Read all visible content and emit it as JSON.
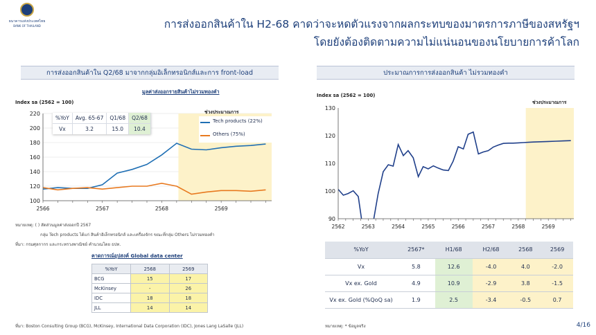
{
  "header": {
    "logo_line1": "ธนาคารแห่งประเทศไทย",
    "logo_line2": "BANK OF THAILAND",
    "title_line1": "การส่งออกสินค้าใน H2-68 คาดว่าจะหดตัวแรงจากผลกระทบของมาตรการภาษีของสหรัฐฯ",
    "title_line2": "โดยยังต้องติดตามความไม่แน่นอนของนโยบายการค้าโลก"
  },
  "left": {
    "panel_title": "การส่งออกสินค้าใน Q2/68 มาจากกลุ่มอิเล็กทรอนิกส์และการ front-load",
    "chart_subtitle": "มูลค่าส่งออกรายสินค้าไม่รวมทองคำ",
    "chart_unit": "Index sa (2562 = 100)",
    "forecast_label": "ช่วงประมาณการ",
    "vx_table": {
      "headers": [
        "%YoY",
        "Avg. 65-67",
        "Q1/68",
        "Q2/68"
      ],
      "row": [
        "Vx",
        "3.2",
        "15.0",
        "10.4"
      ]
    },
    "note_label": "หมายเหตุ: ( ) สัดส่วนมูลค่าส่งออกปี 2567",
    "note_line2": "กลุ่ม Tech products ได้แก่ สินค้าอิเล็กทรอนิกส์ และเครื่องจักร ขณะที่กลุ่ม Others ไม่รวมทองคำ",
    "source_line": "ที่มา: กรมศุลกากร และกระทรวงพาณิชย์ คำนวณโดย ธปท.",
    "gdc_title": "คาดการณ์อุปสงค์ Global data center",
    "gdc_table": {
      "headers": [
        "%YoY",
        "2568",
        "2569"
      ],
      "rows": [
        [
          "BCG",
          "15",
          "17"
        ],
        [
          "McKinsey",
          "-",
          "26"
        ],
        [
          "IDC",
          "18",
          "18"
        ],
        [
          "JLL",
          "14",
          "14"
        ]
      ]
    },
    "gdc_source": "ที่มา: Boston Consulting Group (BCG), McKinsey, International Data Corporation (IDC), Jones Lang LaSalle (JLL)"
  },
  "right": {
    "panel_title": "ประมาณการการส่งออกสินค้า ไม่รวมทองคำ",
    "chart_unit": "Index sa (2562 = 100)",
    "forecast_label": "ช่วงประมาณการ",
    "table": {
      "headers": [
        "%YoY",
        "2567*",
        "H1/68",
        "H2/68",
        "2568",
        "2569"
      ],
      "rows": [
        [
          "Vx",
          "5.8",
          "12.6",
          "-4.0",
          "4.0",
          "-2.0"
        ],
        [
          "Vx ex. Gold",
          "4.9",
          "10.9",
          "-2.9",
          "3.8",
          "-1.5"
        ],
        [
          "Vx ex. Gold (%QoQ sa)",
          "1.9",
          "2.5",
          "-3.4",
          "-0.5",
          "0.7"
        ]
      ]
    },
    "note": "หมายเหตุ: * ข้อมูลจริง"
  },
  "page_number": "4/16",
  "colors": {
    "navy": "#1d3f7a",
    "tech_line": "#1f6fb4",
    "others_line": "#e8791f",
    "right_line": "#1f3f8a",
    "forecast_shade": "#fdf2c9",
    "highlight_green": "#dff0d4"
  },
  "chart_data": [
    {
      "type": "line",
      "ylim": [
        100,
        220
      ],
      "yticks": [
        100,
        120,
        140,
        160,
        180,
        200,
        220
      ],
      "xlim": [
        2566,
        2569.85
      ],
      "xticks": [
        "2566",
        "2567",
        "2568",
        "2569"
      ],
      "forecast_start": 2568.28,
      "series": [
        {
          "name": "Tech products (22%)",
          "x": [
            2566,
            2566.25,
            2566.5,
            2566.75,
            2567,
            2567.25,
            2567.5,
            2567.75,
            2568,
            2568.25,
            2568.5,
            2568.75,
            2569,
            2569.25,
            2569.5,
            2569.75
          ],
          "values": [
            116,
            118,
            117,
            117,
            122,
            138,
            143,
            150,
            163,
            179,
            171,
            170,
            173,
            175,
            176,
            178
          ]
        },
        {
          "name": "Others (75%)",
          "x": [
            2566,
            2566.25,
            2566.5,
            2566.75,
            2567,
            2567.25,
            2567.5,
            2567.75,
            2568,
            2568.25,
            2568.5,
            2568.75,
            2569,
            2569.25,
            2569.5,
            2569.75
          ],
          "values": [
            118,
            115,
            117,
            118,
            116,
            118,
            120,
            120,
            124,
            120,
            109,
            112,
            114,
            114,
            113,
            115
          ]
        }
      ]
    },
    {
      "type": "line",
      "ylim": [
        90,
        130
      ],
      "yticks": [
        90,
        100,
        110,
        120,
        130
      ],
      "xlim": [
        2562,
        2569.85
      ],
      "xticks": [
        "2562",
        "2563",
        "2564",
        "2565",
        "2566",
        "2567",
        "2568",
        "2569"
      ],
      "forecast_start": 2568.25,
      "series": [
        {
          "name": "",
          "x": [
            2562,
            2562.17,
            2562.33,
            2562.5,
            2562.67,
            2562.83,
            2563,
            2563.17,
            2563.33,
            2563.5,
            2563.67,
            2563.83,
            2564,
            2564.17,
            2564.33,
            2564.5,
            2564.67,
            2564.83,
            2565,
            2565.17,
            2565.33,
            2565.5,
            2565.67,
            2565.83,
            2566,
            2566.17,
            2566.33,
            2566.5,
            2566.67,
            2566.83,
            2567,
            2567.17,
            2567.33,
            2567.5,
            2567.67,
            2567.83,
            2568,
            2568.17,
            2568.33,
            2568.5,
            2568.75,
            2569,
            2569.25,
            2569.5,
            2569.75
          ],
          "values": [
            100.6,
            98.5,
            99.1,
            100.1,
            98.0,
            86.0,
            80.0,
            89.0,
            99.0,
            107.0,
            109.5,
            109.0,
            116.8,
            112.8,
            114.6,
            112.0,
            105.2,
            108.8,
            108.0,
            109.1,
            108.3,
            107.6,
            107.4,
            110.8,
            116.0,
            115.2,
            120.5,
            121.3,
            113.4,
            114.1,
            114.6,
            115.9,
            116.6,
            117.2,
            117.3,
            117.3,
            117.4,
            117.5,
            117.6,
            117.7,
            117.8,
            117.9,
            118.0,
            118.1,
            118.2
          ]
        }
      ]
    }
  ]
}
